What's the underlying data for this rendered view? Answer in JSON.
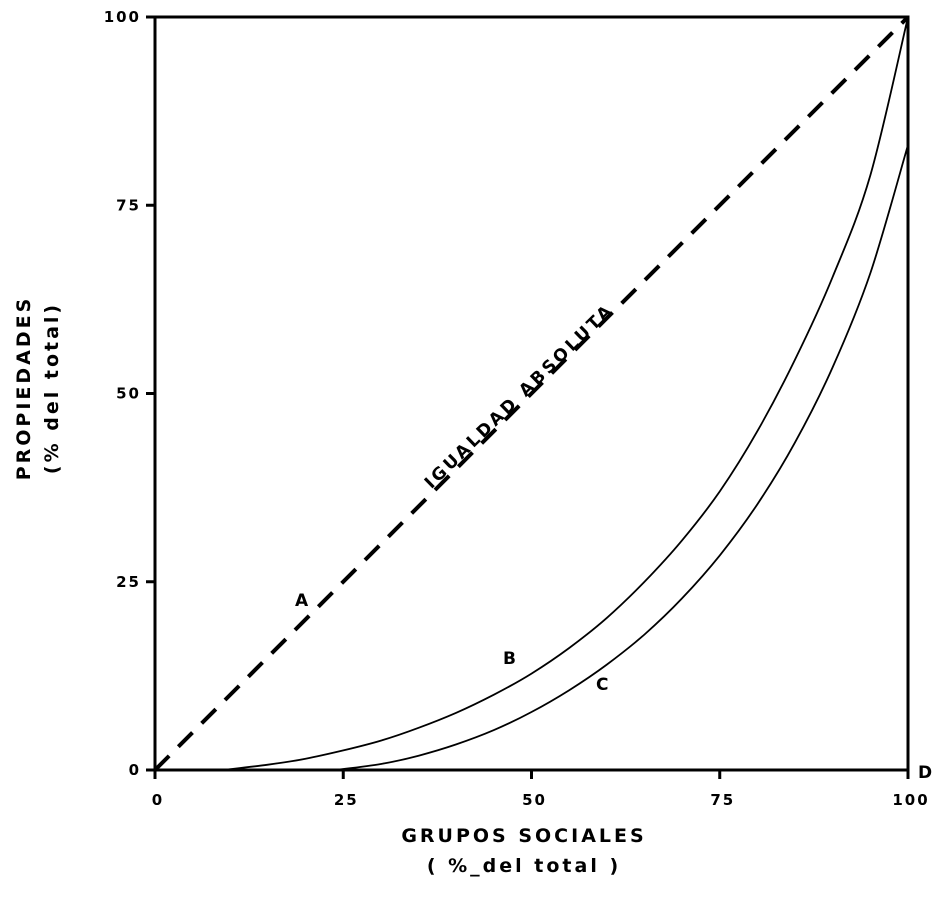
{
  "chart_data": {
    "type": "line",
    "xlabel": "GRUPOS SOCIALES",
    "xlabel_sub": "( %_del total )",
    "ylabel": "PROPIEDADES",
    "ylabel_sub": "(% del total)",
    "xlim": [
      0,
      100
    ],
    "ylim": [
      0,
      100
    ],
    "x_ticks": [
      "0",
      "25",
      "50",
      "75",
      "100"
    ],
    "y_ticks": [
      "0",
      "25",
      "50",
      "75",
      "100"
    ],
    "grid": false,
    "annotation": "IGUALDAD ABSOLUTA",
    "corner_label": "D",
    "series": [
      {
        "name": "A",
        "style": "dashed",
        "x": [
          0,
          100
        ],
        "y": [
          0,
          100
        ]
      },
      {
        "name": "B",
        "style": "solid",
        "x": [
          9,
          15,
          20,
          25,
          30,
          35,
          40,
          45,
          50,
          55,
          60,
          65,
          70,
          75,
          80,
          85,
          90,
          95,
          100
        ],
        "y": [
          0,
          0.7,
          1.5,
          2.6,
          3.9,
          5.6,
          7.6,
          10,
          12.8,
          16.2,
          20.2,
          25,
          30.5,
          37,
          45,
          54.5,
          65.5,
          79,
          100
        ]
      },
      {
        "name": "C",
        "style": "solid",
        "x": [
          24,
          30,
          35,
          40,
          45,
          50,
          55,
          60,
          65,
          70,
          75,
          80,
          85,
          90,
          95,
          100
        ],
        "y": [
          0,
          0.8,
          1.9,
          3.4,
          5.3,
          7.7,
          10.6,
          14,
          18,
          22.8,
          28.5,
          35.3,
          43.5,
          53.5,
          66,
          83
        ]
      }
    ]
  }
}
